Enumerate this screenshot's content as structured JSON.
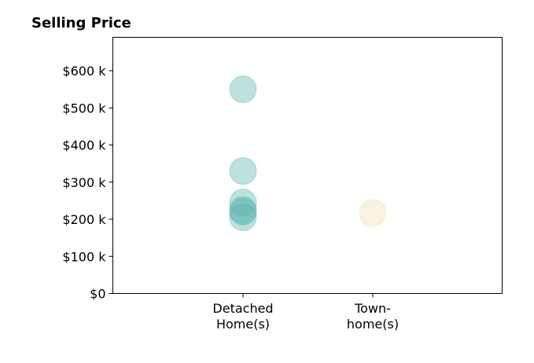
{
  "chart_data": {
    "type": "scatter",
    "title": "Selling Price",
    "xlabel": "",
    "ylabel": "",
    "categories": [
      [
        "Detached",
        "Home(s)"
      ],
      [
        "Town-",
        "home(s)"
      ]
    ],
    "ylim": [
      0,
      690000
    ],
    "yticks": [
      0,
      100000,
      200000,
      300000,
      400000,
      500000,
      600000
    ],
    "ytick_labels": [
      "$0",
      "$100 k",
      "$200 k",
      "$300 k",
      "$400 k",
      "$500 k",
      "$600 k"
    ],
    "grid": false,
    "legend": "none",
    "series": [
      {
        "category_index": 0,
        "color": "#5ab4ac",
        "values": [
          550000,
          330000,
          245000,
          225000,
          220000,
          205000
        ]
      },
      {
        "category_index": 1,
        "color": "#f2ddb0",
        "values": [
          217000
        ]
      }
    ]
  }
}
